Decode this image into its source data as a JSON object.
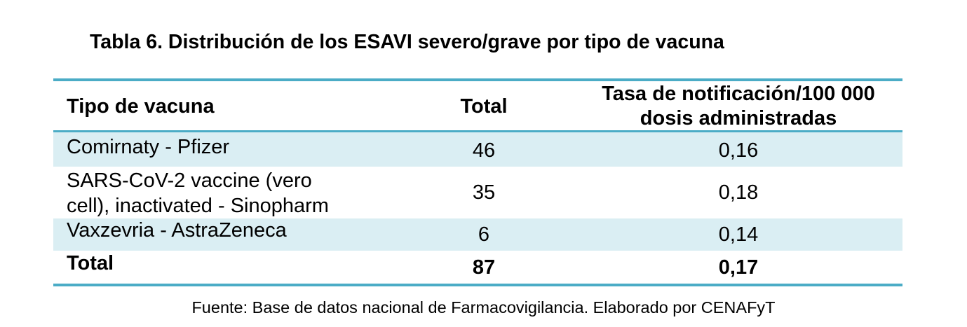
{
  "title": "Tabla 6. Distribución de los ESAVI severo/grave por tipo de vacuna",
  "colors": {
    "rule": "#4BACC6",
    "band": "#DAEEF3",
    "text": "#000000"
  },
  "table": {
    "headers": {
      "type": "Tipo de vacuna",
      "total": "Total",
      "rate_line1": "Tasa de notificación/100 000",
      "rate_line2": "dosis administradas"
    },
    "rows": [
      {
        "type_line1": "Comirnaty - Pfizer",
        "total": "46",
        "rate": "0,16"
      },
      {
        "type_line1": "SARS-CoV-2 vaccine (vero",
        "type_line2": "cell), inactivated - Sinopharm",
        "total": "35",
        "rate": "0,18"
      },
      {
        "type_line1": "Vaxzevria - AstraZeneca",
        "total": "6",
        "rate": "0,14"
      }
    ],
    "total_row": {
      "label": "Total",
      "total": "87",
      "rate": "0,17"
    }
  },
  "source": "Fuente: Base de datos nacional de Farmacovigilancia. Elaborado por CENAFyT"
}
